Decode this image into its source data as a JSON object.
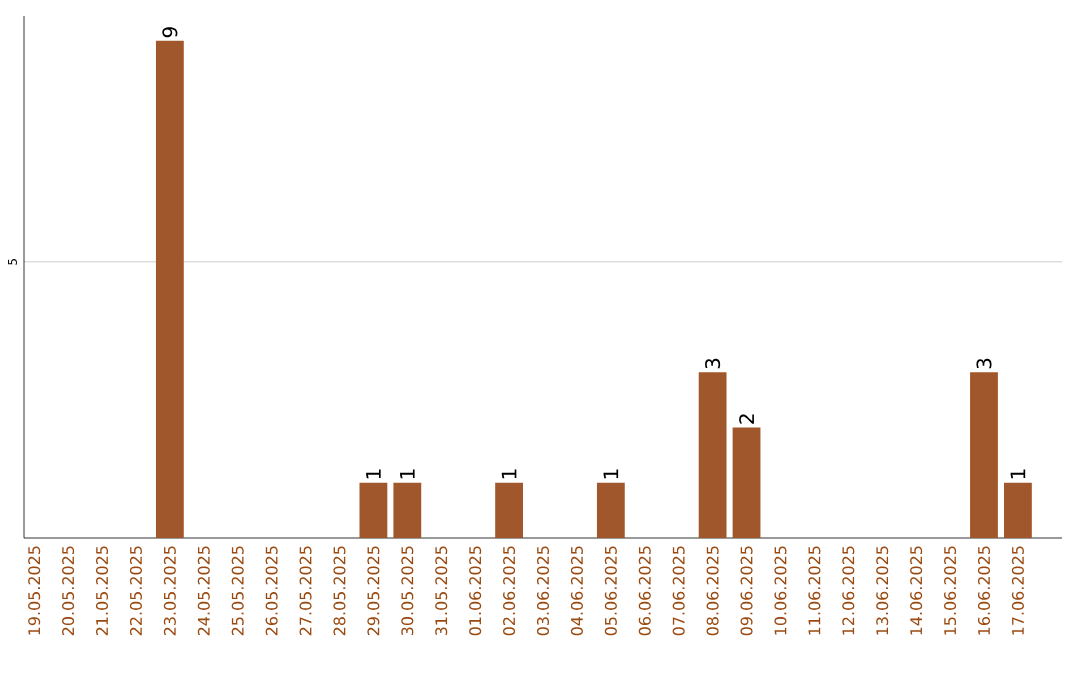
{
  "chart_data": {
    "type": "bar",
    "categories": [
      "19.05.2025",
      "20.05.2025",
      "21.05.2025",
      "22.05.2025",
      "23.05.2025",
      "24.05.2025",
      "25.05.2025",
      "26.05.2025",
      "27.05.2025",
      "28.05.2025",
      "29.05.2025",
      "30.05.2025",
      "31.05.2025",
      "01.06.2025",
      "02.06.2025",
      "03.06.2025",
      "04.06.2025",
      "05.06.2025",
      "06.06.2025",
      "07.06.2025",
      "08.06.2025",
      "09.06.2025",
      "10.06.2025",
      "11.06.2025",
      "12.06.2025",
      "13.06.2025",
      "14.06.2025",
      "15.06.2025",
      "16.06.2025",
      "17.06.2025"
    ],
    "values": [
      0,
      0,
      0,
      0,
      9,
      0,
      0,
      0,
      0,
      0,
      1,
      1,
      0,
      0,
      1,
      0,
      0,
      1,
      0,
      0,
      3,
      2,
      0,
      0,
      0,
      0,
      0,
      0,
      3,
      1
    ],
    "value_labels": [
      null,
      null,
      null,
      null,
      "9",
      null,
      null,
      null,
      null,
      null,
      "1",
      "1",
      null,
      null,
      "1",
      null,
      null,
      "1",
      null,
      null,
      "3",
      "2",
      null,
      null,
      null,
      null,
      null,
      null,
      "3",
      "1"
    ],
    "color": "#a0572b",
    "ylim": [
      0,
      9.45
    ],
    "yticks": [
      5
    ],
    "grid": "y"
  }
}
